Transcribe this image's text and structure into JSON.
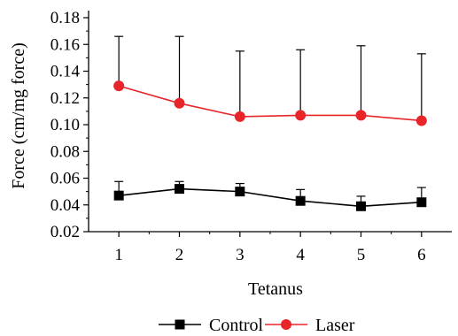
{
  "chart_data": {
    "type": "line",
    "x": [
      1,
      2,
      3,
      4,
      5,
      6
    ],
    "x_tick_labels": [
      "1",
      "2",
      "3",
      "4",
      "5",
      "6"
    ],
    "xlabel": "Tetanus",
    "ylabel": "Force (cm/mg force)",
    "ylim": [
      0.02,
      0.18
    ],
    "y_tick_labels": [
      "0.02",
      "0.04",
      "0.06",
      "0.08",
      "0.10",
      "0.12",
      "0.14",
      "0.16",
      "0.18"
    ],
    "grid": false,
    "legend_position": "bottom",
    "series": [
      {
        "name": "Control",
        "marker": "square",
        "color": "#000000",
        "values": [
          0.047,
          0.052,
          0.05,
          0.043,
          0.039,
          0.042
        ],
        "error_upper": [
          0.0105,
          0.0055,
          0.006,
          0.0085,
          0.0075,
          0.011
        ]
      },
      {
        "name": "Laser",
        "marker": "circle",
        "color": "#e8262a",
        "values": [
          0.129,
          0.116,
          0.106,
          0.107,
          0.107,
          0.103
        ],
        "error_upper": [
          0.037,
          0.05,
          0.049,
          0.049,
          0.052,
          0.05
        ]
      }
    ]
  }
}
